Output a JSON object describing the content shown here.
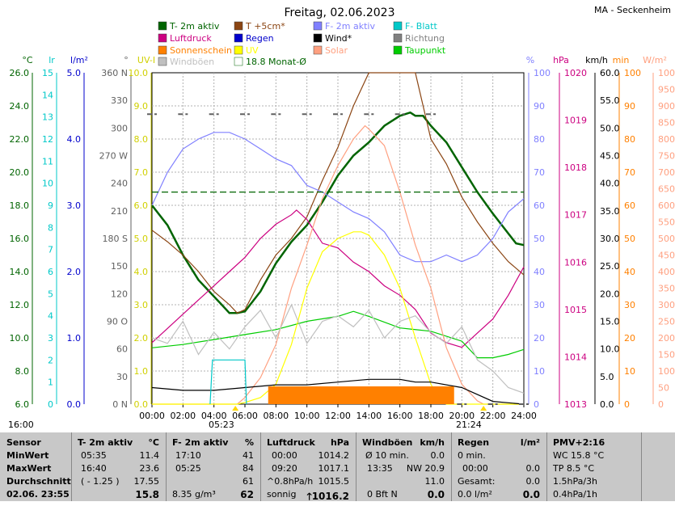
{
  "chart_data": {
    "type": "line",
    "title": "Freitag, 02.06.2023",
    "station": "MA - Seckenheim",
    "legend": [
      {
        "label": "T- 2m aktiv",
        "color": "#006400"
      },
      {
        "label": "T +5cm*",
        "color": "#8b4513"
      },
      {
        "label": "F- 2m aktiv",
        "color": "#8080ff"
      },
      {
        "label": "F- Blatt",
        "color": "#00c8c8"
      },
      {
        "label": "Luftdruck",
        "color": "#cc0080"
      },
      {
        "label": "Regen",
        "color": "#0000cc"
      },
      {
        "label": "Wind*",
        "color": "#000000"
      },
      {
        "label": "Richtung",
        "color": "#808080"
      },
      {
        "label": "Sonnenschein",
        "color": "#ff8000"
      },
      {
        "label": "UV",
        "color": "#ffff00"
      },
      {
        "label": "Solar",
        "color": "#ffa080"
      },
      {
        "label": "Taupunkt",
        "color": "#00cc00"
      },
      {
        "label": "Windböen",
        "color": "#c0c0c0"
      },
      {
        "label": "18.8 Monat-Ø",
        "color": "#006400"
      }
    ],
    "x_ticks": [
      "00:00",
      "02:00",
      "04:00",
      "06:00",
      "08:00",
      "10:00",
      "12:00",
      "14:00",
      "16:00",
      "18:00",
      "20:00",
      "22:00",
      "24:00"
    ],
    "sunrise": "05:23",
    "sunset": "21:24",
    "corner_label": "16:00",
    "axes": [
      {
        "unit": "°C",
        "color": "#006400",
        "ticks": [
          "26.0",
          "24.0",
          "22.0",
          "20.0",
          "18.0",
          "16.0",
          "14.0",
          "12.0",
          "10.0",
          "8.0",
          "6.0"
        ]
      },
      {
        "unit": "lr",
        "color": "#00c8c8",
        "ticks": [
          "15",
          "14",
          "13",
          "12",
          "11",
          "10",
          "9",
          "8",
          "7",
          "6",
          "5",
          "4",
          "3",
          "2",
          "1",
          "0"
        ]
      },
      {
        "unit": "l/m²",
        "color": "#0000cc",
        "ticks": [
          "5.0",
          "4.0",
          "3.0",
          "2.0",
          "1.0",
          "0.0"
        ]
      },
      {
        "unit": "°",
        "color": "#606060",
        "ticks": [
          "360 N",
          "330",
          "300",
          "270 W",
          "240",
          "210",
          "180 S",
          "150",
          "120",
          "90 O",
          "60",
          "30",
          "0 N"
        ]
      },
      {
        "unit": "UV-I",
        "color": "#d0d000",
        "ticks": [
          "10.0",
          "9.0",
          "8.0",
          "7.0",
          "6.0",
          "5.0",
          "4.0",
          "3.0",
          "2.0",
          "1.0",
          "0.0"
        ]
      },
      {
        "unit": "%",
        "color": "#8080ff",
        "ticks": [
          "100",
          "90",
          "80",
          "70",
          "60",
          "50",
          "40",
          "30",
          "20",
          "10",
          "0"
        ]
      },
      {
        "unit": "hPa",
        "color": "#cc0080",
        "ticks": [
          "1020",
          "1019",
          "1018",
          "1017",
          "1016",
          "1015",
          "1014",
          "1013"
        ]
      },
      {
        "unit": "km/h",
        "color": "#000000",
        "ticks": [
          "60.0",
          "55.0",
          "50.0",
          "45.0",
          "40.0",
          "35.0",
          "30.0",
          "25.0",
          "20.0",
          "15.0",
          "10.0",
          "5.0",
          "0.0"
        ]
      },
      {
        "unit": "min",
        "color": "#ff8000",
        "ticks": [
          "100",
          "90",
          "80",
          "70",
          "60",
          "50",
          "40",
          "30",
          "20",
          "10",
          "0"
        ]
      },
      {
        "unit": "W/m²",
        "color": "#ffa080",
        "ticks": [
          "1000",
          "950",
          "900",
          "850",
          "800",
          "750",
          "700",
          "650",
          "600",
          "550",
          "500",
          "450",
          "400",
          "350",
          "300",
          "250",
          "200",
          "150",
          "100",
          "50",
          "0"
        ]
      }
    ],
    "series": [
      {
        "name": "T- 2m aktiv",
        "unit": "°C",
        "x": [
          0,
          1,
          2,
          3,
          4,
          4.5,
          5,
          5.5,
          6,
          7,
          8,
          9,
          10,
          11,
          12,
          13,
          14,
          15,
          16,
          16.67,
          17,
          17.5,
          18,
          19,
          20,
          21,
          22,
          23,
          23.5,
          24
        ],
        "y": [
          18.0,
          16.8,
          15.0,
          13.5,
          12.5,
          12.0,
          11.5,
          11.5,
          11.6,
          12.8,
          14.5,
          15.8,
          16.8,
          18.2,
          19.8,
          21.0,
          21.8,
          22.8,
          23.4,
          23.6,
          23.4,
          23.4,
          22.8,
          21.8,
          20.3,
          18.8,
          17.5,
          16.3,
          15.7,
          15.6
        ]
      },
      {
        "name": "T +5cm*",
        "unit": "°C",
        "x": [
          0,
          1,
          2,
          3,
          4,
          5,
          5.5,
          6,
          7,
          8,
          9,
          10,
          11,
          12,
          13,
          14,
          15,
          16,
          17,
          18,
          19,
          20,
          21,
          22,
          23,
          24
        ],
        "y": [
          16.5,
          15.8,
          15.0,
          14.0,
          12.8,
          12.0,
          11.5,
          11.7,
          13.5,
          15.0,
          16.0,
          17.3,
          19.5,
          21.5,
          24.0,
          28.0,
          30.0,
          30.0,
          30.0,
          22.0,
          20.5,
          18.5,
          17.0,
          15.7,
          14.6,
          13.8
        ]
      },
      {
        "name": "F- 2m aktiv",
        "unit": "%",
        "x": [
          0,
          1,
          2,
          3,
          4,
          5,
          6,
          7,
          8,
          9,
          10,
          11,
          12,
          13,
          14,
          15,
          16,
          17,
          18,
          19,
          20,
          21,
          22,
          23,
          24
        ],
        "y": [
          60,
          70,
          77,
          80,
          82,
          82,
          80,
          77,
          74,
          72,
          66,
          64,
          61,
          58,
          56,
          52,
          45,
          43,
          43,
          45,
          43,
          45,
          50,
          58,
          62
        ]
      },
      {
        "name": "Luftdruck",
        "unit": "hPa",
        "x": [
          0,
          1,
          2,
          3,
          4,
          5,
          6,
          7,
          8,
          9,
          9.33,
          10,
          11,
          12,
          13,
          14,
          15,
          16,
          17,
          18,
          19,
          20,
          21,
          22,
          23,
          24
        ],
        "y": [
          1014.3,
          1014.6,
          1014.9,
          1015.2,
          1015.5,
          1015.8,
          1016.1,
          1016.5,
          1016.8,
          1017.0,
          1017.1,
          1016.9,
          1016.4,
          1016.3,
          1016.0,
          1015.8,
          1015.5,
          1015.3,
          1015.0,
          1014.5,
          1014.3,
          1014.2,
          1014.5,
          1014.8,
          1015.3,
          1015.9
        ]
      },
      {
        "name": "Taupunkt",
        "unit": "°C",
        "x": [
          0,
          2,
          4,
          6,
          8,
          10,
          12,
          13,
          14,
          16,
          18,
          20,
          21,
          22,
          23,
          24
        ],
        "y": [
          9.4,
          9.6,
          9.9,
          10.2,
          10.5,
          11.0,
          11.3,
          11.6,
          11.3,
          10.6,
          10.4,
          9.8,
          8.8,
          8.8,
          9.0,
          9.3
        ]
      },
      {
        "name": "Solar",
        "unit": "W/m²",
        "x": [
          0,
          5.5,
          6,
          7,
          8,
          9,
          10,
          11,
          12,
          13,
          13.75,
          14,
          15,
          16,
          17,
          18,
          19,
          20,
          21,
          21.4,
          24
        ],
        "y": [
          0,
          0,
          20,
          80,
          180,
          350,
          480,
          620,
          720,
          800,
          840,
          830,
          780,
          640,
          480,
          350,
          170,
          60,
          10,
          0,
          0
        ]
      },
      {
        "name": "UV",
        "unit": "UV-I",
        "x": [
          0,
          5.5,
          6,
          7,
          8,
          9,
          10,
          11,
          12,
          13,
          13.5,
          14,
          15,
          16,
          17,
          18,
          18.5,
          19,
          20,
          24
        ],
        "y": [
          0,
          0,
          0.05,
          0.2,
          0.6,
          1.8,
          3.5,
          4.6,
          5.0,
          5.2,
          5.2,
          5.1,
          4.5,
          3.5,
          2.0,
          0.6,
          0.2,
          0,
          0,
          0
        ]
      },
      {
        "name": "Wind*",
        "unit": "km/h",
        "x": [
          0,
          2,
          4,
          6,
          8,
          10,
          12,
          14,
          16,
          17,
          18,
          20,
          22,
          24
        ],
        "y": [
          3.0,
          2.5,
          2.5,
          3.0,
          3.5,
          3.5,
          4.0,
          4.5,
          4.5,
          4.0,
          4.0,
          3.0,
          0.5,
          0.0
        ]
      },
      {
        "name": "Windböen",
        "unit": "km/h",
        "x": [
          0,
          1,
          2,
          3,
          4,
          5,
          6,
          7,
          8,
          9,
          10,
          11,
          12,
          13,
          14,
          15,
          16,
          17,
          18,
          19,
          20,
          21,
          22,
          23,
          24
        ],
        "y": [
          12,
          11,
          15,
          9,
          13,
          10,
          14,
          17,
          12,
          18,
          11,
          15,
          16,
          14,
          17,
          12,
          15,
          16,
          13,
          11,
          14,
          8,
          6,
          3,
          2
        ]
      },
      {
        "name": "Richtung",
        "unit": "°",
        "x": [
          0,
          2,
          4,
          6,
          8,
          10,
          12,
          14,
          16,
          18,
          20,
          22,
          24
        ],
        "y": [
          315,
          315,
          315,
          315,
          315,
          315,
          315,
          315,
          315,
          315,
          0,
          0,
          0
        ]
      },
      {
        "name": "Sonnenschein",
        "unit": "min",
        "x": [
          7.5,
          19.5
        ],
        "y": [
          100,
          100
        ]
      },
      {
        "name": "F- Blatt",
        "unit": "lr",
        "x": [
          3.75,
          3.9,
          6.0,
          6.1
        ],
        "y": [
          0,
          2,
          2,
          0
        ]
      },
      {
        "name": "18.8 Monat-Ø",
        "unit": "°C",
        "x": [
          0,
          24
        ],
        "y": [
          18.8,
          18.8
        ]
      }
    ]
  },
  "table": {
    "headers": [
      {
        "name": "Sensor",
        "unit": ""
      },
      {
        "name": "T- 2m aktiv",
        "unit": "°C"
      },
      {
        "name": "F- 2m aktiv",
        "unit": "%"
      },
      {
        "name": "Luftdruck",
        "unit": "hPa"
      },
      {
        "name": "Windböen",
        "unit": "km/h"
      },
      {
        "name": "Regen",
        "unit": "l/m²"
      },
      {
        "name": "PMV+2:16",
        "unit": ""
      }
    ],
    "row_labels": [
      "MinWert",
      "MaxWert",
      "Durchschnitt",
      "02.06. 23:55"
    ],
    "temp": [
      [
        "05:35",
        "11.4"
      ],
      [
        "16:40",
        "23.6"
      ],
      [
        "( - 1.25 )",
        "17.55"
      ],
      [
        "",
        "15.8"
      ]
    ],
    "humidity": [
      [
        "17:10",
        "41"
      ],
      [
        "05:25",
        "84"
      ],
      [
        "",
        "61"
      ],
      [
        "8.35 g/m³",
        "62"
      ]
    ],
    "pressure": [
      [
        "00:00",
        "1014.2"
      ],
      [
        "09:20",
        "1017.1"
      ],
      [
        "^0.8hPa/h",
        "1015.5"
      ],
      [
        "sonnig",
        "1016.2"
      ]
    ],
    "gusts": [
      [
        "Ø 10 min.",
        "0.0"
      ],
      [
        "13:35",
        "NW 20.9"
      ],
      [
        "",
        "11.0"
      ],
      [
        "0 Bft N",
        "0.0"
      ]
    ],
    "rain": [
      [
        "0 min.",
        ""
      ],
      [
        "00:00",
        "0.0"
      ],
      [
        "Gesamt:",
        "0.0"
      ],
      [
        "0.0 l/m²",
        "0.0"
      ]
    ],
    "pmv": [
      "WC 15.8 °C",
      "TP 8.5 °C",
      "1.5hPa/3h",
      "0.4hPa/1h"
    ]
  }
}
